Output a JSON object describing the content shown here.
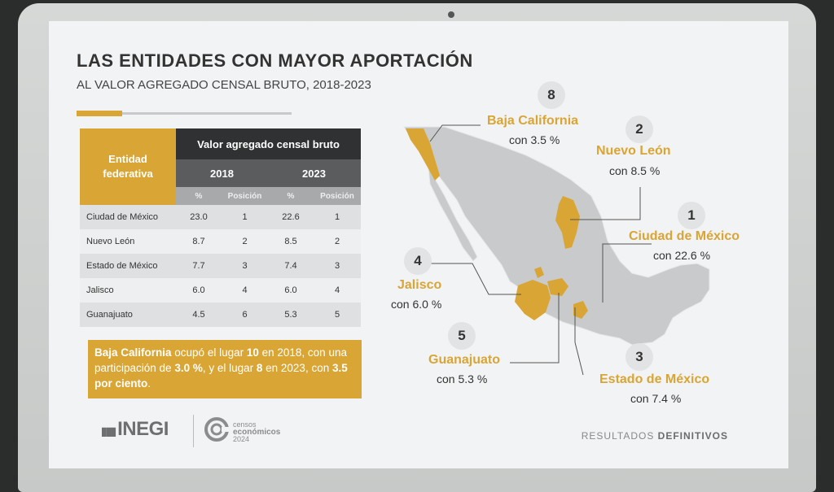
{
  "slide": {
    "title": "LAS ENTIDADES CON MAYOR APORTACIÓN",
    "subtitle": "AL VALOR AGREGADO CENSAL BRUTO, 2018-2023",
    "accent_color": "#d9a534"
  },
  "table": {
    "header_entity": "Entidad federativa",
    "header_main": "Valor agregado censal bruto",
    "year_a": "2018",
    "year_b": "2023",
    "sub_pct": "%",
    "sub_pos": "Posición",
    "rows": [
      {
        "entity": "Ciudad de México",
        "pct2018": "23.0",
        "pos2018": "1",
        "pct2023": "22.6",
        "pos2023": "1"
      },
      {
        "entity": "Nuevo León",
        "pct2018": "8.7",
        "pos2018": "2",
        "pct2023": "8.5",
        "pos2023": "2"
      },
      {
        "entity": "Estado de México",
        "pct2018": "7.7",
        "pos2018": "3",
        "pct2023": "7.4",
        "pos2023": "3"
      },
      {
        "entity": "Jalisco",
        "pct2018": "6.0",
        "pos2018": "4",
        "pct2023": "6.0",
        "pos2023": "4"
      },
      {
        "entity": "Guanajuato",
        "pct2018": "4.5",
        "pos2018": "6",
        "pct2023": "5.3",
        "pos2023": "5"
      }
    ]
  },
  "note": {
    "p1": "Baja California",
    "p2": " ocupó el lugar ",
    "p3": "10",
    "p4": " en 2018, con una participación de ",
    "p5": "3.0 %",
    "p6": ", y el lugar ",
    "p7": "8",
    "p8": " en 2023, con ",
    "p9": "3.5 por ciento",
    "p10": "."
  },
  "map_labels": [
    {
      "rank": "8",
      "name": "Baja California",
      "value": "con 3.5 %"
    },
    {
      "rank": "2",
      "name": "Nuevo León",
      "value": "con 8.5 %"
    },
    {
      "rank": "1",
      "name": "Ciudad de México",
      "value": "con  22.6 %"
    },
    {
      "rank": "4",
      "name": "Jalisco",
      "value": "con 6.0 %"
    },
    {
      "rank": "5",
      "name": "Guanajuato",
      "value": "con 5.3 %"
    },
    {
      "rank": "3",
      "name": "Estado de México",
      "value": "con 7.4 %"
    }
  ],
  "footer": {
    "inegi": "INEGI",
    "censos_line1": "censos",
    "censos_line2": "económicos",
    "censos_line3": "2024",
    "results_light": "RESULTADOS ",
    "results_bold": "DEFINITIVOS"
  }
}
